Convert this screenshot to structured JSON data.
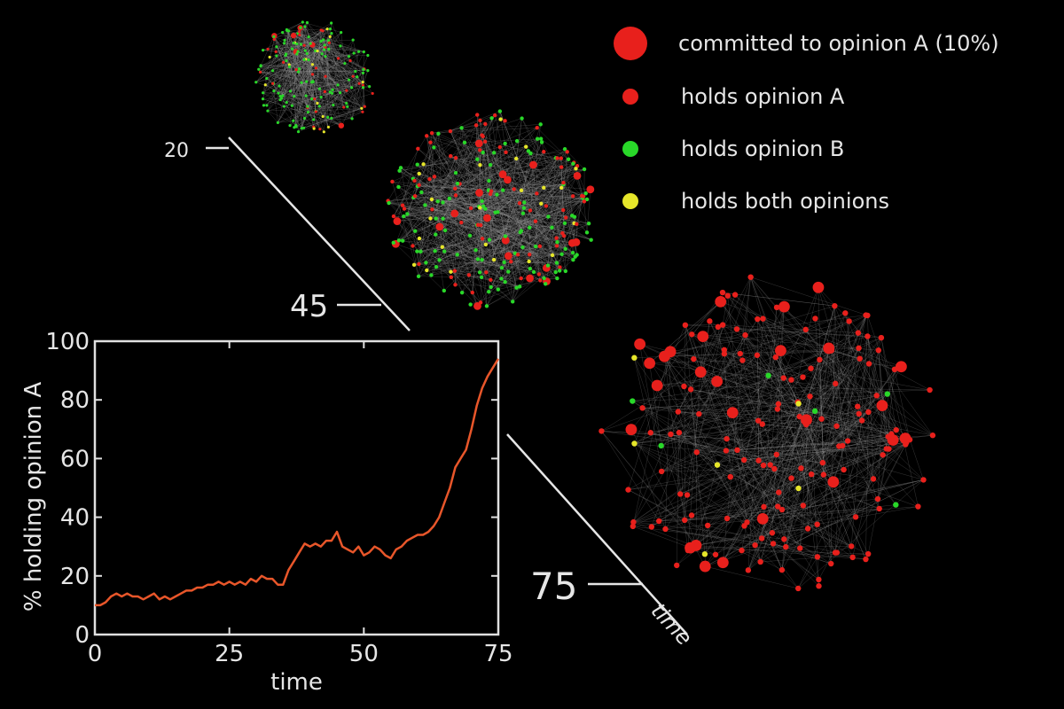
{
  "legend": [
    {
      "label": "committed to opinion A (10%)",
      "color": "#e8201c",
      "marker": "large"
    },
    {
      "label": "holds opinion A",
      "color": "#e8201c",
      "marker": "small"
    },
    {
      "label": "holds opinion B",
      "color": "#29d829",
      "marker": "small"
    },
    {
      "label": "holds both opinions",
      "color": "#e6e62a",
      "marker": "small"
    }
  ],
  "snapshots": [
    {
      "time_label": "20",
      "time": 20
    },
    {
      "time_label": "45",
      "time": 45
    },
    {
      "time_label": "75",
      "time": 75
    }
  ],
  "time_arrow_label": "time",
  "chart_data": {
    "type": "line",
    "title": "",
    "xlabel": "time",
    "ylabel": "% holding opinion A",
    "xlim": [
      0,
      75
    ],
    "ylim": [
      0,
      100
    ],
    "xticks": [
      "0",
      "25",
      "50",
      "75"
    ],
    "yticks": [
      "0",
      "20",
      "40",
      "60",
      "80",
      "100"
    ],
    "grid": false,
    "line_color": "#e8562a",
    "series": [
      {
        "x": [
          0,
          1,
          2,
          3,
          4,
          5,
          6,
          7,
          8,
          9,
          10,
          11,
          12,
          13,
          14,
          15,
          16,
          17,
          18,
          19,
          20,
          21,
          22,
          23,
          24,
          25,
          26,
          27,
          28,
          29,
          30,
          31,
          32,
          33,
          34,
          35,
          36,
          37,
          38,
          39,
          40,
          41,
          42,
          43,
          44,
          45,
          46,
          47,
          48,
          49,
          50,
          51,
          52,
          53,
          54,
          55,
          56,
          57,
          58,
          59,
          60,
          61,
          62,
          63,
          64,
          65,
          66,
          67,
          68,
          69,
          70,
          71,
          72,
          73,
          74,
          75
        ],
        "values": [
          10,
          10,
          11,
          13,
          14,
          13,
          14,
          13,
          13,
          12,
          13,
          14,
          12,
          13,
          12,
          13,
          14,
          15,
          15,
          16,
          16,
          17,
          17,
          18,
          17,
          18,
          17,
          18,
          17,
          19,
          18,
          20,
          19,
          19,
          17,
          17,
          22,
          25,
          28,
          31,
          30,
          31,
          30,
          32,
          32,
          35,
          30,
          29,
          28,
          30,
          27,
          28,
          30,
          29,
          27,
          26,
          29,
          30,
          32,
          33,
          34,
          34,
          35,
          37,
          40,
          45,
          50,
          57,
          60,
          63,
          70,
          78,
          84,
          88,
          91,
          94
        ]
      }
    ]
  }
}
